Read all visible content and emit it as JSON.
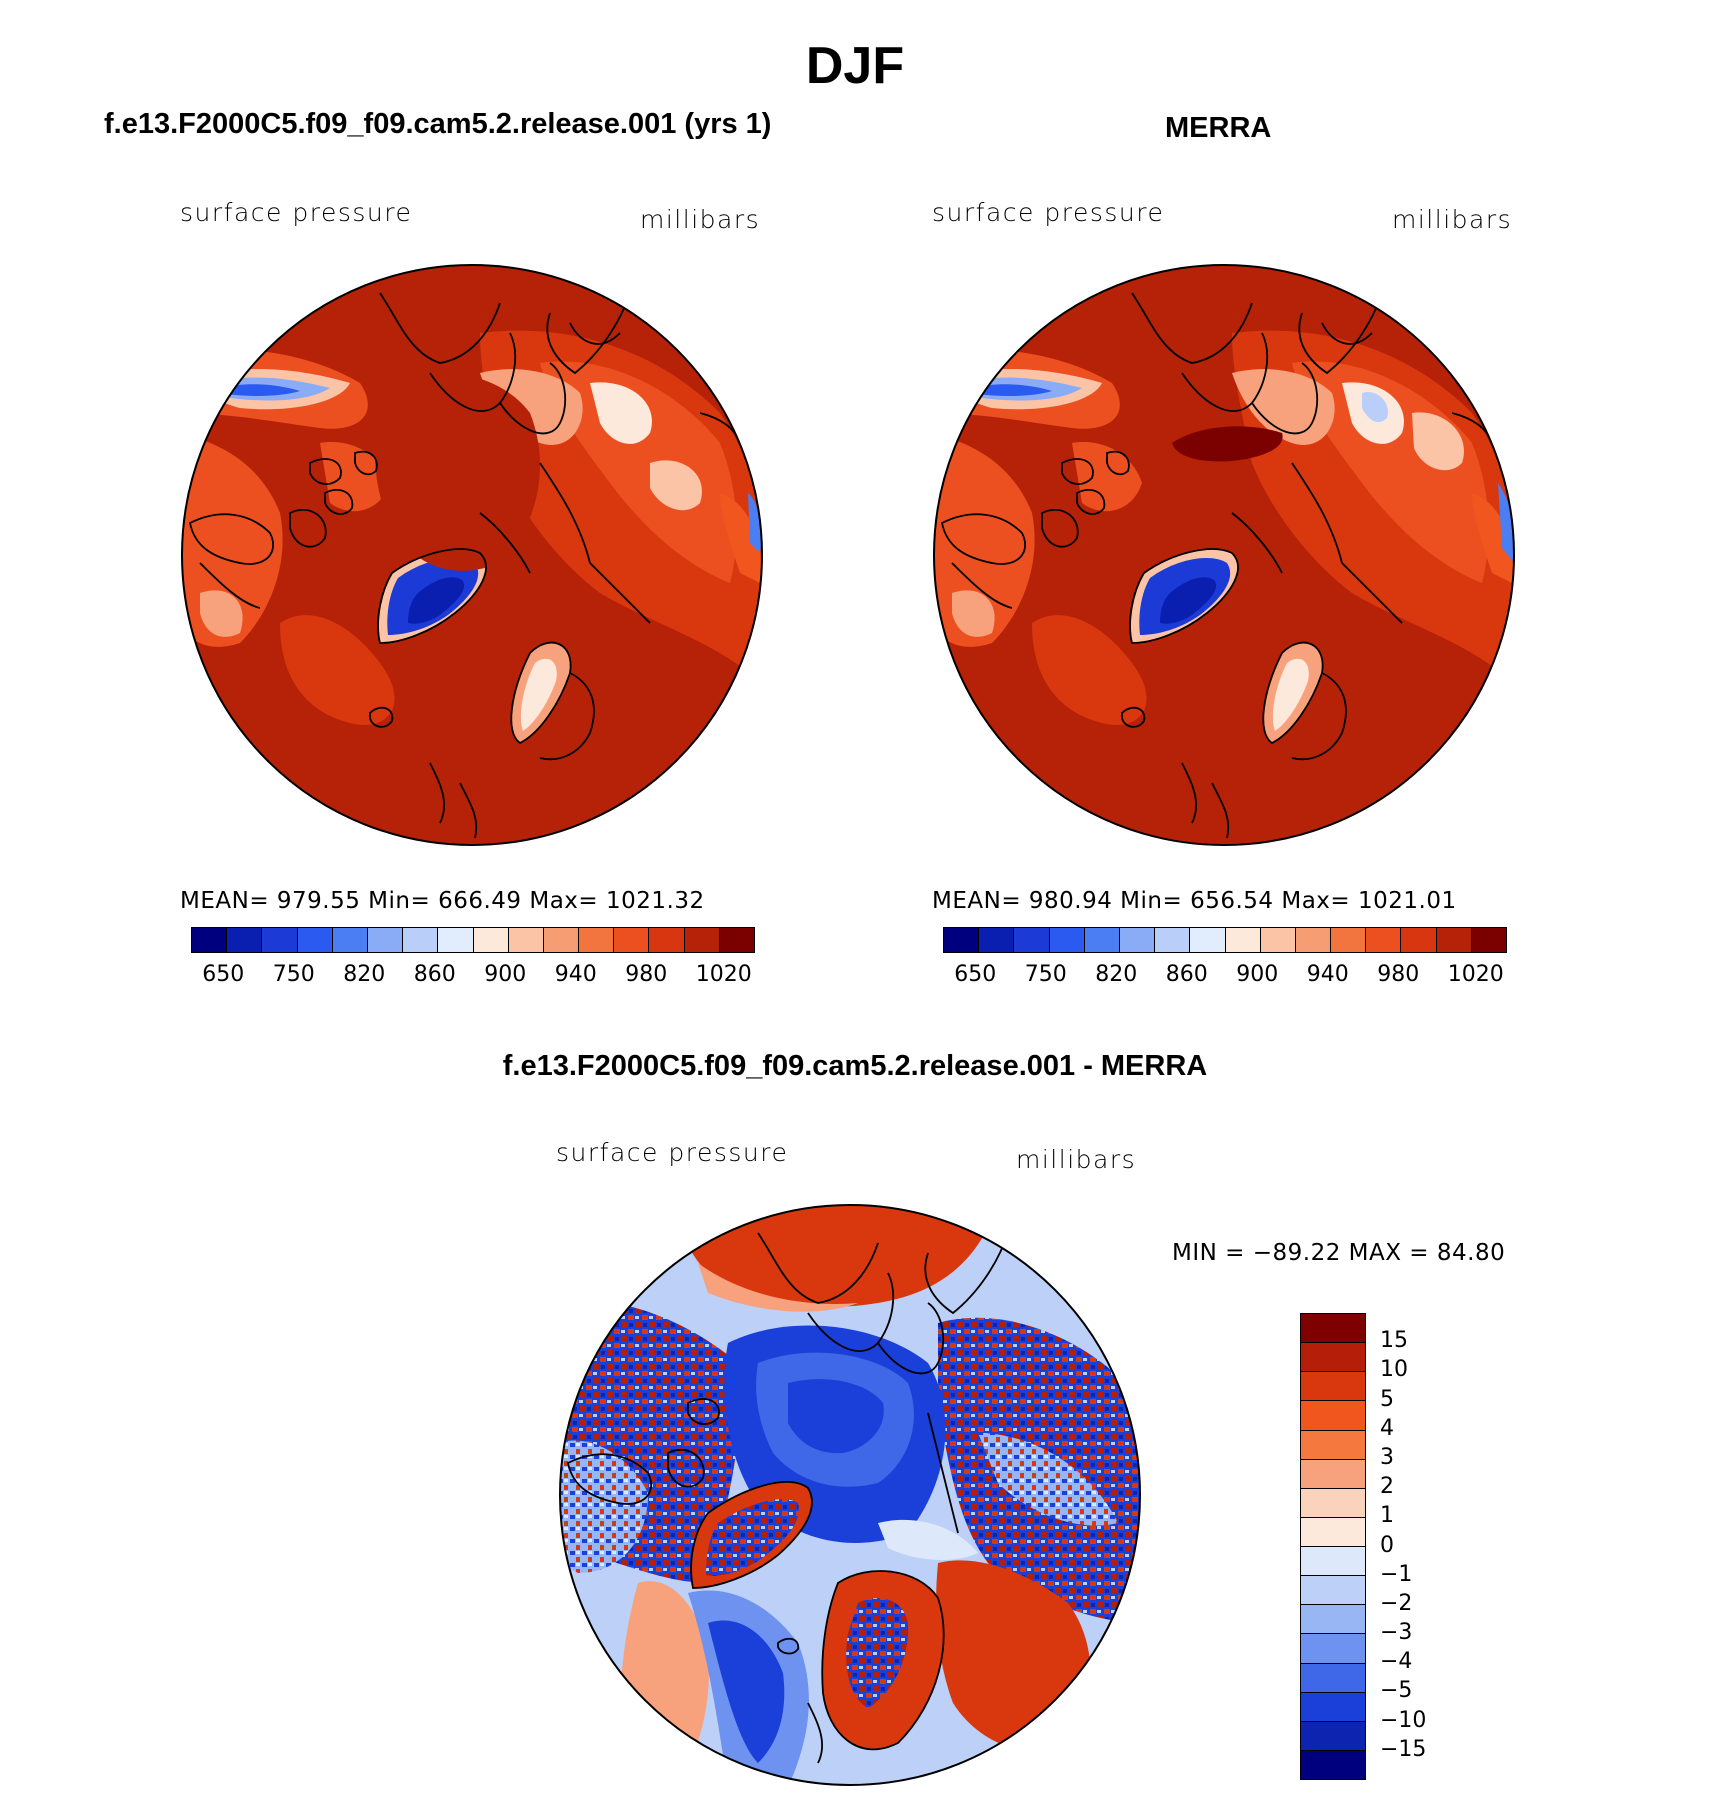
{
  "figure": {
    "title": "DJF"
  },
  "panels": [
    {
      "title": "f.e13.F2000C5.f09_f09.cam5.2.release.001 (yrs 1)",
      "left_label": "surface pressure",
      "right_label": "millibars",
      "stats": "MEAN=  979.55   Min=  666.49   Max=  1021.32"
    },
    {
      "title": "MERRA",
      "left_label": "surface pressure",
      "right_label": "millibars",
      "stats": "MEAN=  980.94   Min=  656.54   Max=  1021.01"
    },
    {
      "title": "f.e13.F2000C5.f09_f09.cam5.2.release.001 - MERRA",
      "left_label": "surface pressure",
      "right_label": "millibars",
      "stats": "MIN  =  −89.22  MAX  =    84.80"
    }
  ],
  "colorbars": {
    "abs": {
      "colors": [
        "#00007f",
        "#0a1fb0",
        "#1c3bd6",
        "#2a5aef",
        "#4b7ef2",
        "#8aacf6",
        "#b9cffa",
        "#e1ecfd",
        "#fde9d9",
        "#fbc4a6",
        "#f79d74",
        "#f2753f",
        "#ec5020",
        "#d73610",
        "#b52208",
        "#7b0000"
      ],
      "labels": [
        "650",
        "750",
        "820",
        "860",
        "900",
        "940",
        "980",
        "1020"
      ]
    },
    "diff": {
      "colors": [
        "#7f0000",
        "#b51e08",
        "#d9380f",
        "#f0561e",
        "#f5783f",
        "#f8a27d",
        "#fbd3bc",
        "#fde9dc",
        "#dde9fb",
        "#bcd0f8",
        "#98b5f4",
        "#6d92ef",
        "#3e68e8",
        "#1b3fd9",
        "#0c24b0",
        "#00007f"
      ],
      "labels": [
        "15",
        "10",
        "5",
        "4",
        "3",
        "2",
        "1",
        "0",
        "−1",
        "−2",
        "−3",
        "−4",
        "−5",
        "−10",
        "−15"
      ]
    }
  },
  "map_colors": {
    "abs_base": "#b52208",
    "abs_mid": "#d9380f",
    "abs_high": "#f0561e",
    "abs_low": "#f8a27d",
    "abs_white": "#fde9dc",
    "abs_blue": "#1c3bd6",
    "abs_darkblue": "#0a1fb0",
    "abs_max": "#7b0000",
    "diff_red": "#d9380f",
    "diff_blue": "#1b3fd9",
    "diff_light": "#bcd0f8",
    "diff_pink": "#f8a27d"
  }
}
